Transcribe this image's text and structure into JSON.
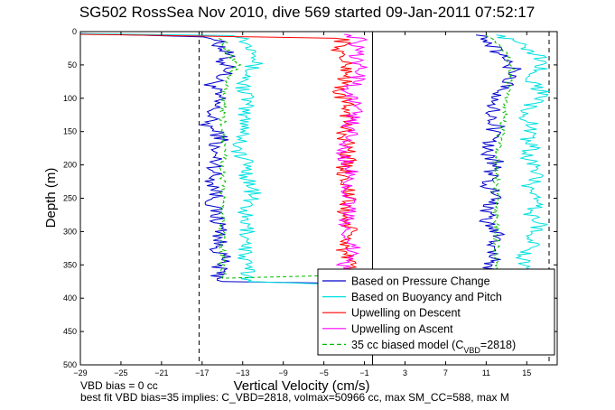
{
  "chart_data": {
    "type": "line",
    "title": "SG502 RossSea Nov 2010, dive 569 started 09-Jan-2011 07:52:17",
    "xlabel": "Vertical Velocity (cm/s)",
    "ylabel": "Depth (m)",
    "xlim": [
      -29,
      18
    ],
    "ylim": [
      500,
      0
    ],
    "y_reversed": true,
    "grid": false,
    "legend_position": "bottom-right",
    "xticks": [
      -29,
      -25,
      -21,
      -17,
      -13,
      -9,
      -5,
      -1,
      3,
      7,
      11,
      15
    ],
    "yticks": [
      0,
      50,
      100,
      150,
      200,
      250,
      300,
      350,
      400,
      450,
      500
    ],
    "reference_lines": {
      "dashed_x": [
        -17.3,
        17.2
      ],
      "solid_x": [
        -0.2
      ]
    },
    "series": [
      {
        "name": "Based on Pressure Change",
        "color": "#0000cc",
        "points": [
          [
            -29,
            3
          ],
          [
            -16,
            8
          ],
          [
            -15.5,
            15
          ],
          [
            -15,
            25
          ],
          [
            -14.5,
            35
          ],
          [
            -15,
            45
          ],
          [
            -14,
            55
          ],
          [
            -15,
            65
          ],
          [
            -16,
            80
          ],
          [
            -15.5,
            100
          ],
          [
            -16,
            120
          ],
          [
            -16.5,
            140
          ],
          [
            -15,
            160
          ],
          [
            -16,
            175
          ],
          [
            -15.5,
            200
          ],
          [
            -16,
            220
          ],
          [
            -15.5,
            240
          ],
          [
            -16,
            260
          ],
          [
            -15.5,
            280
          ],
          [
            -15,
            300
          ],
          [
            -15.5,
            320
          ],
          [
            -15,
            340
          ],
          [
            -15.5,
            360
          ],
          [
            -15,
            375
          ],
          [
            -1,
            378
          ],
          [
            12,
            365
          ],
          [
            11,
            350
          ],
          [
            12,
            340
          ],
          [
            11.5,
            320
          ],
          [
            12,
            300
          ],
          [
            11,
            280
          ],
          [
            11.5,
            260
          ],
          [
            12,
            245
          ],
          [
            11,
            230
          ],
          [
            11.5,
            210
          ],
          [
            12,
            195
          ],
          [
            11,
            180
          ],
          [
            11.5,
            160
          ],
          [
            12,
            140
          ],
          [
            11.5,
            120
          ],
          [
            12,
            100
          ],
          [
            13,
            80
          ],
          [
            14,
            60
          ],
          [
            13,
            45
          ],
          [
            12,
            30
          ],
          [
            11,
            15
          ],
          [
            10,
            5
          ]
        ]
      },
      {
        "name": "Based on Buoyancy and Pitch",
        "color": "#00e0e0",
        "points": [
          [
            -29,
            3
          ],
          [
            -13,
            6
          ],
          [
            -12.5,
            20
          ],
          [
            -11,
            35
          ],
          [
            -12,
            50
          ],
          [
            -12.5,
            65
          ],
          [
            -13,
            80
          ],
          [
            -12.5,
            100
          ],
          [
            -13,
            120
          ],
          [
            -12.5,
            140
          ],
          [
            -13,
            160
          ],
          [
            -13.5,
            180
          ],
          [
            -12.5,
            200
          ],
          [
            -12.5,
            220
          ],
          [
            -12,
            240
          ],
          [
            -12.5,
            260
          ],
          [
            -13,
            280
          ],
          [
            -12.5,
            300
          ],
          [
            -12.5,
            320
          ],
          [
            -13,
            340
          ],
          [
            -12.5,
            360
          ],
          [
            -12.5,
            375
          ],
          [
            -2,
            380
          ],
          [
            15,
            365
          ],
          [
            14.5,
            350
          ],
          [
            15,
            335
          ],
          [
            15.5,
            320
          ],
          [
            16,
            300
          ],
          [
            16.5,
            285
          ],
          [
            15,
            270
          ],
          [
            16.5,
            255
          ],
          [
            15,
            240
          ],
          [
            15.5,
            225
          ],
          [
            16.5,
            205
          ],
          [
            15,
            190
          ],
          [
            15.5,
            170
          ],
          [
            15,
            155
          ],
          [
            15.5,
            140
          ],
          [
            15,
            125
          ],
          [
            15.5,
            110
          ],
          [
            16.5,
            90
          ],
          [
            15.5,
            75
          ],
          [
            16,
            60
          ],
          [
            16.5,
            45
          ],
          [
            15.5,
            30
          ],
          [
            14,
            15
          ],
          [
            12,
            5
          ]
        ]
      },
      {
        "name": "Upwelling on Descent",
        "color": "#ff0000",
        "points": [
          [
            -29,
            4
          ],
          [
            -3,
            10
          ],
          [
            -3.5,
            30
          ],
          [
            -2.5,
            60
          ],
          [
            -3.5,
            90
          ],
          [
            -2.5,
            120
          ],
          [
            -3,
            150
          ],
          [
            -2.5,
            180
          ],
          [
            -3,
            210
          ],
          [
            -2.5,
            240
          ],
          [
            -3,
            270
          ],
          [
            -2.5,
            300
          ],
          [
            -3,
            330
          ],
          [
            -2.5,
            360
          ],
          [
            -2.5,
            375
          ]
        ]
      },
      {
        "name": "Upwelling on Ascent",
        "color": "#ff00ff",
        "points": [
          [
            -2.5,
            375
          ],
          [
            -3,
            350
          ],
          [
            -2,
            320
          ],
          [
            -3,
            300
          ],
          [
            -2.5,
            270
          ],
          [
            -3,
            240
          ],
          [
            -2.5,
            210
          ],
          [
            -3,
            180
          ],
          [
            -2.5,
            150
          ],
          [
            -2,
            120
          ],
          [
            -2.5,
            90
          ],
          [
            -1.5,
            60
          ],
          [
            -2,
            30
          ],
          [
            -1.5,
            10
          ],
          [
            -3,
            4
          ]
        ]
      },
      {
        "name": "35 cc biased model (C_VBD=2818)",
        "color": "#00bb00",
        "dashed": true,
        "points": [
          [
            -15,
            10
          ],
          [
            -14.5,
            30
          ],
          [
            -13.5,
            50
          ],
          [
            -14.5,
            70
          ],
          [
            -15,
            100
          ],
          [
            -15,
            150
          ],
          [
            -14.5,
            175
          ],
          [
            -15,
            200
          ],
          [
            -15,
            260
          ],
          [
            -15,
            320
          ],
          [
            -15,
            370
          ],
          [
            12,
            360
          ],
          [
            12,
            300
          ],
          [
            12,
            250
          ],
          [
            12,
            200
          ],
          [
            12.5,
            150
          ],
          [
            13,
            100
          ],
          [
            13.5,
            50
          ],
          [
            12.5,
            20
          ],
          [
            11,
            5
          ]
        ]
      }
    ],
    "legend": [
      {
        "label": "Based on Pressure Change",
        "color": "#0000cc",
        "dashed": false
      },
      {
        "label": "Based on Buoyancy and Pitch",
        "color": "#00e0e0",
        "dashed": false
      },
      {
        "label": "Upwelling on Descent",
        "color": "#ff0000",
        "dashed": false
      },
      {
        "label": "Upwelling on Ascent",
        "color": "#ff00ff",
        "dashed": false
      },
      {
        "label": "35 cc biased model (C",
        "sub": "VBD",
        "suffix": "=2818)",
        "color": "#00bb00",
        "dashed": true
      }
    ],
    "annotations": [
      "VBD bias = 0 cc",
      "best fit VBD bias=35 implies: C_VBD=2818, volmax=50966 cc, max SM_CC=588, max M"
    ]
  }
}
